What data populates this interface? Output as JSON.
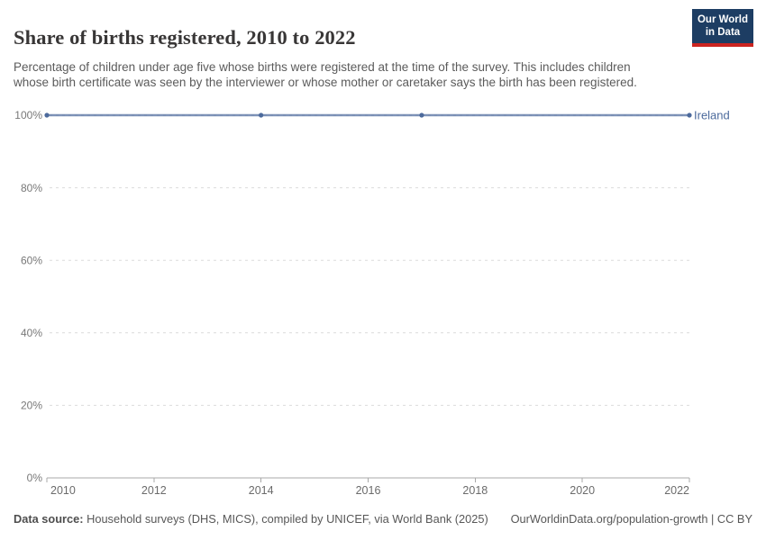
{
  "header": {
    "title": "Share of births registered, 2010 to 2022",
    "subtitle": "Percentage of children under age five whose births were registered at the time of the survey. This includes children whose birth certificate was seen by the interviewer or whose mother or caretaker says the birth has been registered."
  },
  "logo": {
    "line1": "Our World",
    "line2": "in Data",
    "bg_color": "#1d3d63",
    "accent_color": "#cb2420"
  },
  "chart_data": {
    "type": "line",
    "title": "Share of births registered, 2010 to 2022",
    "x": [
      2010,
      2014,
      2017,
      2022
    ],
    "series": [
      {
        "name": "Ireland",
        "values": [
          100,
          100,
          100,
          100
        ],
        "color": "#4C6A9C"
      }
    ],
    "xlabel": "",
    "ylabel": "",
    "xlim": [
      2010,
      2022
    ],
    "ylim": [
      0,
      100
    ],
    "x_ticks": [
      2010,
      2012,
      2014,
      2016,
      2018,
      2020,
      2022
    ],
    "y_ticks": [
      0,
      20,
      40,
      60,
      80,
      100
    ],
    "y_tick_suffix": "%",
    "grid": "horizontal-dashed",
    "legend_position": "end-of-line-label",
    "colors": {
      "gridline": "#dcdcdc",
      "axis": "#a8a8a8",
      "y_tick_label": "#787878",
      "x_tick_label": "#6b6b6b"
    }
  },
  "footer": {
    "datasource_label": "Data source:",
    "datasource_text": " Household surveys (DHS, MICS), compiled by UNICEF, via World Bank (2025)",
    "attribution": "OurWorldinData.org/population-growth | CC BY"
  }
}
